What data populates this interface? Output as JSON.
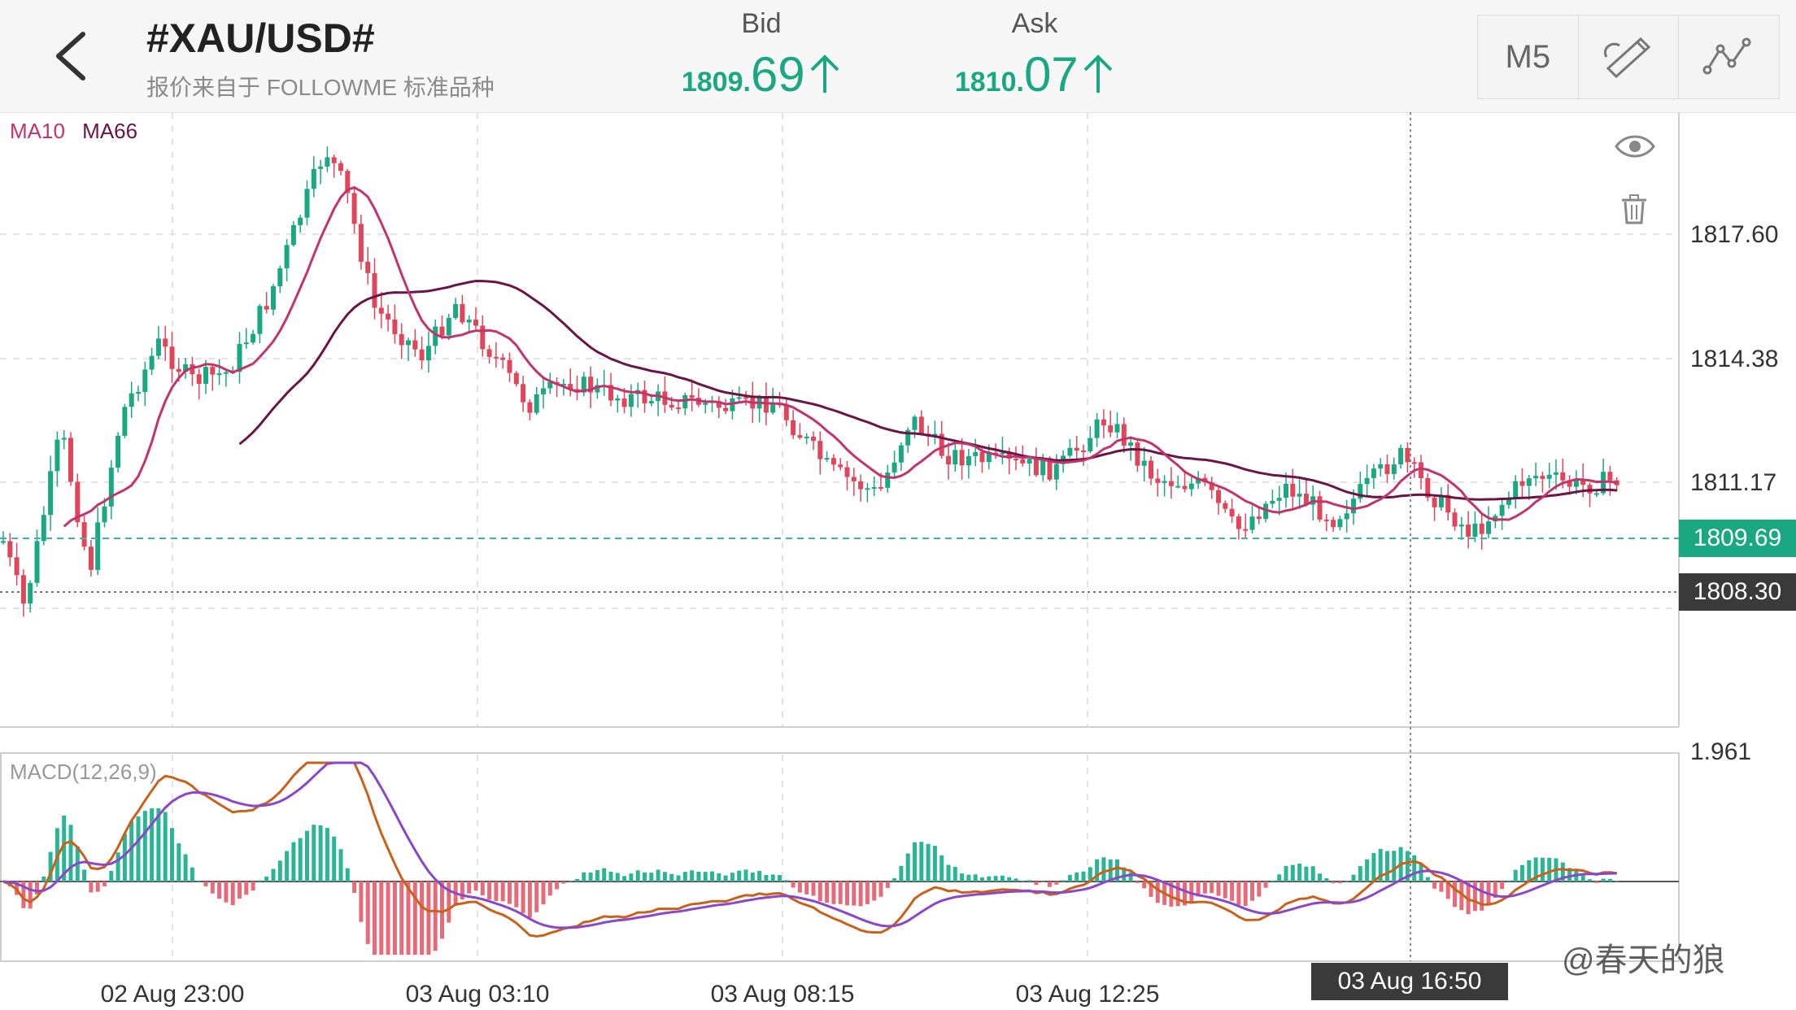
{
  "header": {
    "title": "#XAU/USD#",
    "subtitle": "报价来自于 FOLLOWME 标准品种",
    "bid": {
      "label": "Bid",
      "prefix": "1809.",
      "big": "69"
    },
    "ask": {
      "label": "Ask",
      "prefix": "1810.",
      "big": "07"
    },
    "timeframe": "M5",
    "icons": [
      "back-arrow-icon",
      "up-arrow-icon",
      "pencil-draw-icon",
      "indicator-line-icon"
    ]
  },
  "chart": {
    "ma_legend": [
      {
        "label": "MA10",
        "color": "#c2346e"
      },
      {
        "label": "MA66",
        "color": "#6b1446"
      }
    ],
    "price_axis": [
      "1817.60",
      "1814.38",
      "1811.17"
    ],
    "current_price": "1809.69",
    "crosshair_price": "1808.30",
    "time_axis": [
      "02 Aug 23:00",
      "03 Aug 03:10",
      "03 Aug 08:15",
      "03 Aug 12:25"
    ],
    "crosshair_time": "03 Aug 16:50",
    "icons": [
      "eye-icon",
      "trash-icon"
    ]
  },
  "macd": {
    "label": "MACD(12,26,9)",
    "axis_value": "1.961"
  },
  "watermark": "@春天的狼",
  "colors": {
    "up": "#1aa882",
    "down": "#e0455a",
    "ma10": "#c2346e",
    "ma66": "#6b1446",
    "macd_line": "#c8621a",
    "signal_line": "#8a47c8",
    "hist_up": "#2bb597",
    "hist_down": "#e86a78",
    "current_price_bg": "#1aa882",
    "crosshair_bg": "#3a3a3a"
  }
}
